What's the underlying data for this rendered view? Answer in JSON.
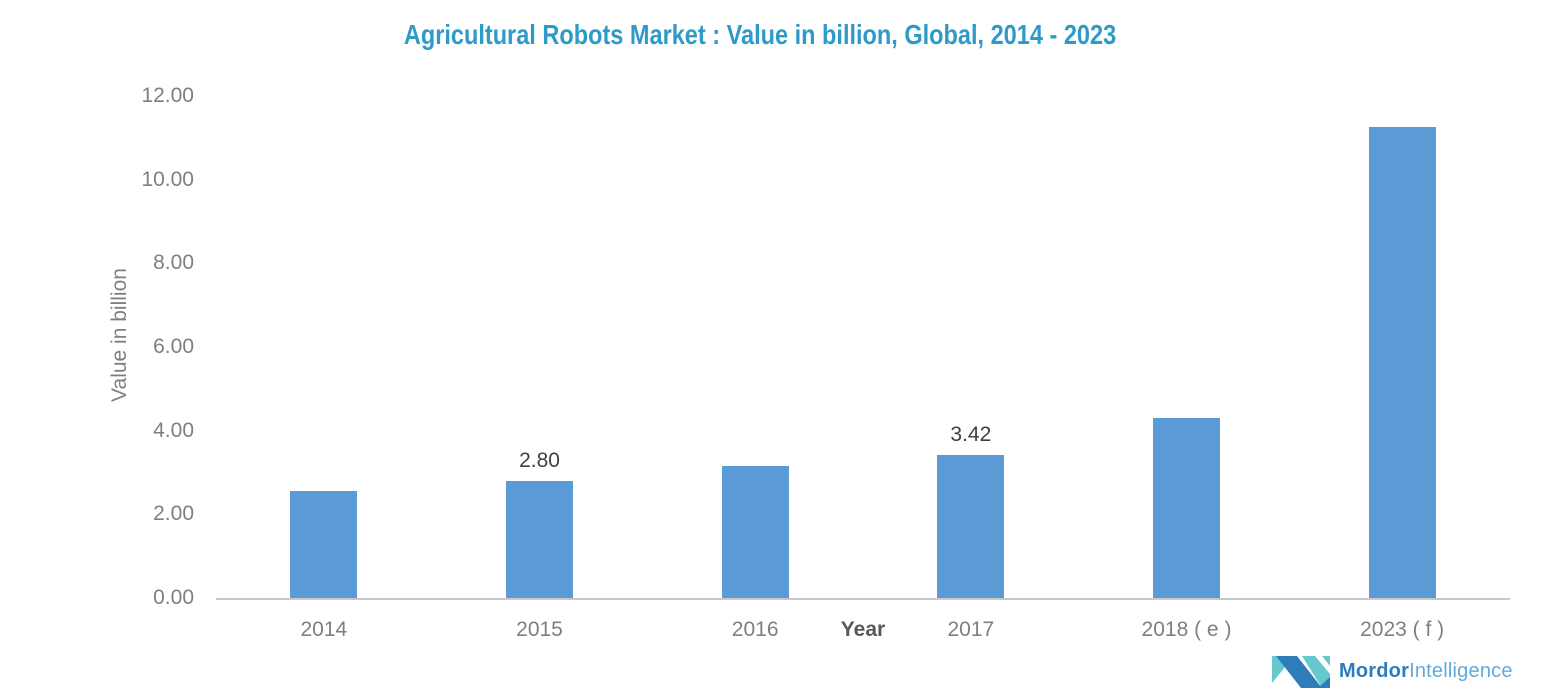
{
  "chart_data": {
    "type": "bar",
    "title": "Agricultural Robots Market : Value in billion, Global, 2014 - 2023",
    "categories": [
      "2014",
      "2015",
      "2016",
      "2017",
      "2018 ( e )",
      "2023 ( f )"
    ],
    "values": [
      2.55,
      2.8,
      3.15,
      3.42,
      4.3,
      11.25
    ],
    "bar_labels": [
      "",
      "2.80",
      "",
      "3.42",
      "",
      ""
    ],
    "xlabel": "Year",
    "ylabel": "Value in billion",
    "ylim": [
      0,
      12
    ],
    "yticks": [
      "0.00",
      "2.00",
      "4.00",
      "6.00",
      "8.00",
      "10.00",
      "12.00"
    ],
    "grid": false,
    "legend": false
  },
  "colors": {
    "title": "#2E9AC7",
    "bar": "#5B9BD5",
    "axis_line": "#C9C9C9",
    "tick_label": "#7F7F7F",
    "data_label": "#404040",
    "x_axis_title": "#595959"
  },
  "logo": {
    "text_bold": "Mordor",
    "text_light": "Intelligence",
    "color_bold": "#2E7CBE",
    "color_light": "#64A8DB",
    "mark_teal": "#66C8CE",
    "mark_blue": "#2E7CB8"
  }
}
